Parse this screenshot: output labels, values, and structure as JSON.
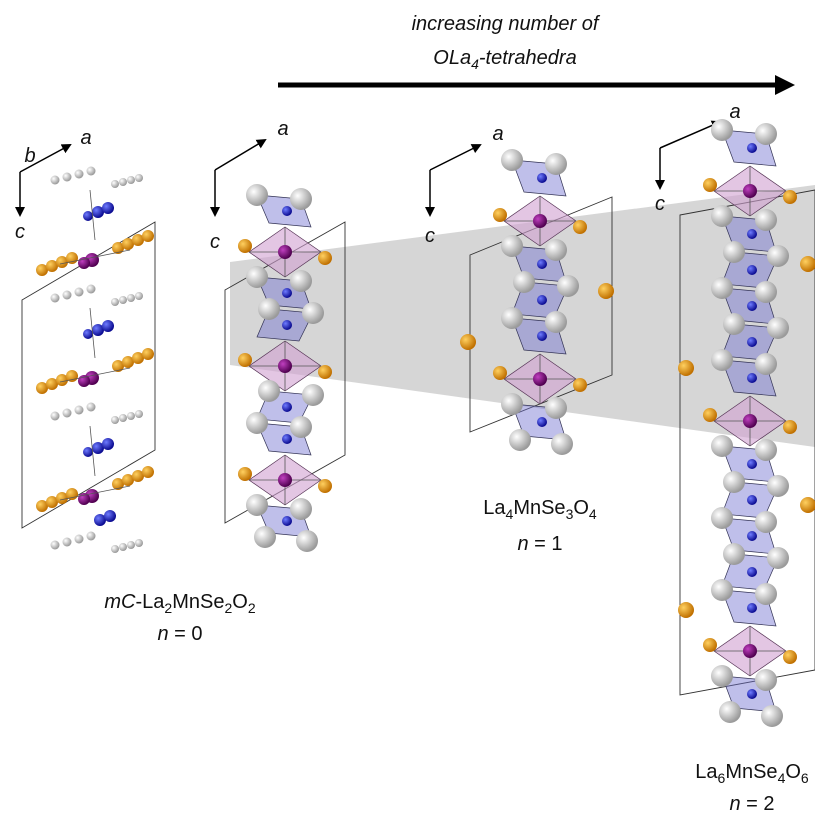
{
  "header": {
    "line1": "increasing number of",
    "line2": {
      "main": "OLa",
      "sub": "4",
      "rest": "-tetrahedra"
    }
  },
  "axes": [
    [
      "b",
      "a",
      "c"
    ],
    [
      "a",
      "c"
    ],
    [
      "a",
      "c"
    ],
    [
      "a",
      "c"
    ]
  ],
  "structures": [
    {
      "prefix": "mC",
      "parts": [
        "-La",
        "2",
        "MnSe",
        "2",
        "O",
        "2"
      ],
      "n": {
        "var": "n",
        "rest": " = 0"
      }
    },
    {
      "prefix": "",
      "parts": [
        "La",
        "4",
        "MnSe",
        "3",
        "O",
        "4"
      ],
      "n": {
        "var": "n",
        "rest": " = 1"
      }
    },
    {
      "prefix": "",
      "parts": [
        "La",
        "6",
        "MnSe",
        "4",
        "O",
        "6"
      ],
      "n": {
        "var": "n",
        "rest": " = 2"
      }
    }
  ]
}
